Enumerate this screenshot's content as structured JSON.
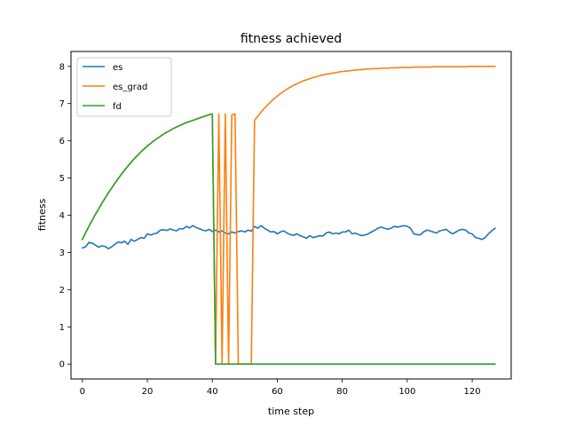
{
  "chart_data": {
    "type": "line",
    "title": "fitness achieved",
    "xlabel": "time step",
    "ylabel": "fitness",
    "xlim": [
      -3.5,
      132
    ],
    "ylim": [
      -0.4,
      8.4
    ],
    "xticks": [
      0,
      20,
      40,
      60,
      80,
      100,
      120
    ],
    "yticks": [
      0,
      1,
      2,
      3,
      4,
      5,
      6,
      7,
      8
    ],
    "grid": false,
    "legend": "top-left",
    "series": [
      {
        "name": "es",
        "color": "#1f77b4",
        "x": [
          0,
          1,
          2,
          3,
          4,
          5,
          6,
          7,
          8,
          9,
          10,
          11,
          12,
          13,
          14,
          15,
          16,
          17,
          18,
          19,
          20,
          21,
          22,
          23,
          24,
          25,
          26,
          27,
          28,
          29,
          30,
          31,
          32,
          33,
          34,
          35,
          36,
          37,
          38,
          39,
          40,
          41,
          42,
          43,
          44,
          45,
          46,
          47,
          48,
          49,
          50,
          51,
          52,
          53,
          54,
          55,
          56,
          57,
          58,
          59,
          60,
          61,
          62,
          63,
          64,
          65,
          66,
          67,
          68,
          69,
          70,
          71,
          72,
          73,
          74,
          75,
          76,
          77,
          78,
          79,
          80,
          81,
          82,
          83,
          84,
          85,
          86,
          87,
          88,
          89,
          90,
          91,
          92,
          93,
          94,
          95,
          96,
          97,
          98,
          99,
          100,
          101,
          102,
          103,
          104,
          105,
          106,
          107,
          108,
          109,
          110,
          111,
          112,
          113,
          114,
          115,
          116,
          117,
          118,
          119,
          120,
          121,
          122,
          123,
          124,
          125,
          126,
          127
        ],
        "y": [
          3.12,
          3.15,
          3.27,
          3.25,
          3.2,
          3.14,
          3.18,
          3.16,
          3.1,
          3.15,
          3.22,
          3.28,
          3.26,
          3.3,
          3.22,
          3.35,
          3.3,
          3.35,
          3.4,
          3.38,
          3.5,
          3.47,
          3.5,
          3.52,
          3.6,
          3.61,
          3.59,
          3.63,
          3.6,
          3.58,
          3.64,
          3.63,
          3.7,
          3.66,
          3.72,
          3.67,
          3.64,
          3.6,
          3.58,
          3.62,
          3.56,
          3.6,
          3.55,
          3.58,
          3.52,
          3.5,
          3.55,
          3.52,
          3.56,
          3.58,
          3.55,
          3.6,
          3.57,
          3.7,
          3.65,
          3.72,
          3.65,
          3.6,
          3.55,
          3.56,
          3.5,
          3.55,
          3.58,
          3.52,
          3.48,
          3.46,
          3.5,
          3.45,
          3.42,
          3.38,
          3.45,
          3.4,
          3.42,
          3.45,
          3.44,
          3.52,
          3.55,
          3.5,
          3.52,
          3.5,
          3.55,
          3.55,
          3.6,
          3.5,
          3.52,
          3.48,
          3.45,
          3.47,
          3.5,
          3.55,
          3.6,
          3.65,
          3.68,
          3.65,
          3.62,
          3.65,
          3.7,
          3.68,
          3.7,
          3.72,
          3.7,
          3.65,
          3.5,
          3.48,
          3.47,
          3.55,
          3.6,
          3.58,
          3.55,
          3.52,
          3.58,
          3.6,
          3.62,
          3.55,
          3.5,
          3.55,
          3.6,
          3.62,
          3.6,
          3.52,
          3.5,
          3.4,
          3.38,
          3.35,
          3.4,
          3.5,
          3.58,
          3.65
        ]
      },
      {
        "name": "es_grad",
        "color": "#ff7f0e",
        "x": [
          0,
          1,
          2,
          3,
          4,
          5,
          6,
          7,
          8,
          9,
          10,
          11,
          12,
          13,
          14,
          15,
          16,
          17,
          18,
          19,
          20,
          21,
          22,
          23,
          24,
          25,
          26,
          27,
          28,
          29,
          30,
          31,
          32,
          33,
          34,
          35,
          36,
          37,
          38,
          39,
          40,
          41,
          42,
          43,
          44,
          45,
          46,
          47,
          48,
          49,
          50,
          51,
          52,
          53,
          54,
          55,
          56,
          57,
          58,
          59,
          60,
          61,
          62,
          63,
          64,
          65,
          66,
          67,
          68,
          69,
          70,
          71,
          72,
          73,
          74,
          75,
          76,
          77,
          78,
          79,
          80,
          81,
          82,
          83,
          84,
          85,
          86,
          87,
          88,
          89,
          90,
          91,
          92,
          93,
          94,
          95,
          96,
          97,
          98,
          99,
          100,
          101,
          102,
          103,
          104,
          105,
          106,
          107,
          108,
          109,
          110,
          111,
          112,
          113,
          114,
          115,
          116,
          117,
          118,
          119,
          120,
          121,
          122,
          123,
          124,
          125,
          126,
          127
        ],
        "y": [
          3.35,
          3.53,
          3.7,
          3.86,
          4.02,
          4.17,
          4.32,
          4.46,
          4.6,
          4.73,
          4.86,
          4.98,
          5.1,
          5.21,
          5.32,
          5.42,
          5.52,
          5.61,
          5.7,
          5.78,
          5.86,
          5.93,
          6.0,
          6.06,
          6.12,
          6.18,
          6.23,
          6.28,
          6.33,
          6.37,
          6.41,
          6.45,
          6.49,
          6.52,
          6.55,
          6.58,
          6.61,
          6.64,
          6.67,
          6.7,
          6.72,
          0.0,
          6.72,
          0.0,
          6.72,
          0.0,
          6.7,
          6.72,
          0.0,
          0.0,
          0.0,
          0.0,
          0.0,
          6.55,
          6.66,
          6.77,
          6.87,
          6.96,
          7.05,
          7.13,
          7.2,
          7.27,
          7.33,
          7.39,
          7.44,
          7.49,
          7.53,
          7.57,
          7.61,
          7.64,
          7.67,
          7.7,
          7.72,
          7.75,
          7.77,
          7.79,
          7.8,
          7.82,
          7.83,
          7.85,
          7.86,
          7.87,
          7.88,
          7.89,
          7.9,
          7.91,
          7.91,
          7.92,
          7.93,
          7.93,
          7.94,
          7.94,
          7.95,
          7.95,
          7.95,
          7.96,
          7.96,
          7.96,
          7.97,
          7.97,
          7.97,
          7.97,
          7.98,
          7.98,
          7.98,
          7.98,
          7.98,
          7.98,
          7.99,
          7.99,
          7.99,
          7.99,
          7.99,
          7.99,
          7.99,
          7.99,
          7.99,
          7.99,
          7.99,
          8.0,
          8.0,
          8.0,
          8.0,
          8.0,
          8.0,
          8.0,
          8.0,
          8.0
        ]
      },
      {
        "name": "fd",
        "color": "#2ca02c",
        "x": [
          0,
          1,
          2,
          3,
          4,
          5,
          6,
          7,
          8,
          9,
          10,
          11,
          12,
          13,
          14,
          15,
          16,
          17,
          18,
          19,
          20,
          21,
          22,
          23,
          24,
          25,
          26,
          27,
          28,
          29,
          30,
          31,
          32,
          33,
          34,
          35,
          36,
          37,
          38,
          39,
          40,
          41,
          42,
          43,
          44,
          45,
          46,
          47,
          48,
          49,
          50,
          51,
          52,
          53,
          54,
          55,
          56,
          57,
          58,
          59,
          60,
          61,
          62,
          63,
          64,
          65,
          66,
          67,
          68,
          69,
          70,
          71,
          72,
          73,
          74,
          75,
          76,
          77,
          78,
          79,
          80,
          81,
          82,
          83,
          84,
          85,
          86,
          87,
          88,
          89,
          90,
          91,
          92,
          93,
          94,
          95,
          96,
          97,
          98,
          99,
          100,
          101,
          102,
          103,
          104,
          105,
          106,
          107,
          108,
          109,
          110,
          111,
          112,
          113,
          114,
          115,
          116,
          117,
          118,
          119,
          120,
          121,
          122,
          123,
          124,
          125,
          126,
          127
        ],
        "y": [
          3.35,
          3.53,
          3.7,
          3.86,
          4.02,
          4.17,
          4.32,
          4.46,
          4.6,
          4.73,
          4.86,
          4.98,
          5.1,
          5.21,
          5.32,
          5.42,
          5.52,
          5.61,
          5.7,
          5.78,
          5.86,
          5.93,
          6.0,
          6.06,
          6.12,
          6.18,
          6.23,
          6.28,
          6.33,
          6.37,
          6.41,
          6.45,
          6.49,
          6.52,
          6.55,
          6.58,
          6.61,
          6.64,
          6.67,
          6.7,
          6.72,
          0.0,
          0.0,
          0.0,
          0.0,
          0.0,
          0.0,
          0.0,
          0.0,
          0.0,
          0.0,
          0.0,
          0.0,
          0.0,
          0.0,
          0.0,
          0.0,
          0.0,
          0.0,
          0.0,
          0.0,
          0.0,
          0.0,
          0.0,
          0.0,
          0.0,
          0.0,
          0.0,
          0.0,
          0.0,
          0.0,
          0.0,
          0.0,
          0.0,
          0.0,
          0.0,
          0.0,
          0.0,
          0.0,
          0.0,
          0.0,
          0.0,
          0.0,
          0.0,
          0.0,
          0.0,
          0.0,
          0.0,
          0.0,
          0.0,
          0.0,
          0.0,
          0.0,
          0.0,
          0.0,
          0.0,
          0.0,
          0.0,
          0.0,
          0.0,
          0.0,
          0.0,
          0.0,
          0.0,
          0.0,
          0.0,
          0.0,
          0.0,
          0.0,
          0.0,
          0.0,
          0.0,
          0.0,
          0.0,
          0.0,
          0.0,
          0.0,
          0.0,
          0.0,
          0.0,
          0.0,
          0.0,
          0.0,
          0.0,
          0.0,
          0.0,
          0.0,
          0.0
        ]
      }
    ]
  }
}
